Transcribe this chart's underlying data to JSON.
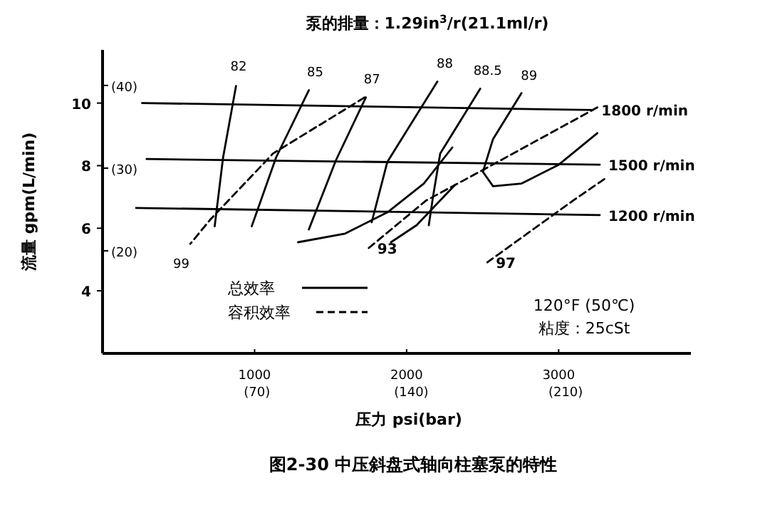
{
  "chart_data": {
    "type": "line",
    "title": "泵的排量：1.29in$^{3}$/r(21.1ml/r)",
    "xlabel": "压力 psi(bar)",
    "ylabel": "流量 gpm(L/min)",
    "xlim": [
      0,
      3870
    ],
    "xticks": [
      1000,
      2000,
      3000
    ],
    "x2lim": [
      0,
      266.8
    ],
    "x2ticks": [
      {
        "value": 70,
        "label": "(70)"
      },
      {
        "value": 140,
        "label": "(140)"
      },
      {
        "value": 210,
        "label": "(210)"
      }
    ],
    "ylim": [
      2,
      11.7
    ],
    "yticks": [
      4,
      6,
      8,
      10
    ],
    "y2lim": [
      7.6,
      44.3
    ],
    "y2ticks": [
      {
        "value": 20,
        "label": "(20)"
      },
      {
        "value": 30,
        "label": "(30)"
      },
      {
        "value": 40,
        "label": "(40)"
      }
    ],
    "marker": "none",
    "grid": false,
    "series": [
      {
        "name": "1800 r/min",
        "color": "#000000",
        "line_style": "solid",
        "x": [
          260,
          3225
        ],
        "values": [
          10.0,
          9.78
        ]
      },
      {
        "name": "1500 r/min",
        "color": "#000000",
        "line_style": "solid",
        "x": [
          290,
          3270
        ],
        "values": [
          8.21,
          8.03
        ]
      },
      {
        "name": "1200 r/min",
        "color": "#000000",
        "line_style": "solid",
        "x": [
          220,
          3270
        ],
        "values": [
          6.65,
          6.42
        ]
      },
      {
        "name": "82",
        "color": "#000000",
        "line_style": "solid",
        "x": [
          737,
          793,
          878
        ],
        "values": [
          6.06,
          8.26,
          10.55
        ]
      },
      {
        "name": "85",
        "color": "#000000",
        "line_style": "solid",
        "x": [
          981,
          1141,
          1357
        ],
        "values": [
          6.06,
          8.26,
          10.41
        ]
      },
      {
        "name": "87",
        "color": "#000000",
        "line_style": "solid",
        "x": [
          1357,
          1535,
          1732
        ],
        "values": [
          5.96,
          8.17,
          10.18
        ]
      },
      {
        "name": "88",
        "color": "#000000",
        "line_style": "solid",
        "x": [
          1770,
          1873,
          2202
        ],
        "values": [
          6.19,
          8.12,
          10.69
        ]
      },
      {
        "name": "88.5",
        "color": "#000000",
        "line_style": "solid",
        "x": [
          2146,
          2174,
          2221,
          2484
        ],
        "values": [
          6.1,
          7.02,
          8.39,
          10.46
        ]
      },
      {
        "name": "89",
        "color": "#000000",
        "line_style": "solid",
        "x": [
          3254,
          3000,
          2756,
          2568,
          2502,
          2568,
          2756
        ],
        "values": [
          9.04,
          8.03,
          7.43,
          7.34,
          7.8,
          8.85,
          10.32
        ]
      },
      {
        "color": "#000000",
        "line_style": "solid",
        "x": [
          1286,
          1596,
          1878,
          2113,
          2300
        ],
        "values": [
          5.55,
          5.83,
          6.52,
          7.43,
          8.58
        ]
      },
      {
        "color": "#000000",
        "line_style": "solid",
        "x": [
          1897,
          2066,
          2319
        ],
        "values": [
          5.55,
          6.1,
          7.39
        ]
      },
      {
        "name": "99",
        "color": "#000000",
        "line_style": "dashed",
        "x": [
          1723,
          1122,
          709,
          577
        ],
        "values": [
          10.18,
          8.39,
          6.28,
          5.5
        ]
      },
      {
        "name": "93",
        "color": "#000000",
        "line_style": "dashed",
        "x": [
          3254,
          2531,
          2127,
          1751
        ],
        "values": [
          9.86,
          7.94,
          6.88,
          5.37
        ]
      },
      {
        "name": "97",
        "color": "#000000",
        "line_style": "dashed",
        "x": [
          3300,
          3094,
          2531
        ],
        "values": [
          7.57,
          6.88,
          4.91
        ]
      }
    ],
    "annotations": [
      "总效率",
      "容积效率",
      "120°F (50℃)",
      "粘度：25cSt",
      "图2-30 中压斜盘式轴向柱塞泵的特性"
    ]
  }
}
